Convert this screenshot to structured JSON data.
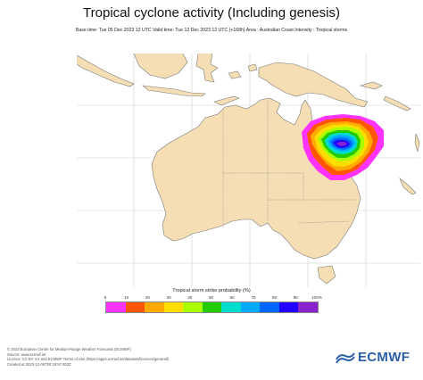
{
  "header": {
    "title": "Tropical cyclone activity (Including genesis)",
    "subtitle": "Base time: Tue 05 Dec 2023 12 UTC Valid time: Tue 12 Dec 2023 12 UTC (+168h) Area : Australian Coast Intensity : Tropical storms"
  },
  "legend": {
    "title": "Tropical storm strike probability (%)",
    "ticks": [
      "5",
      "10",
      "20",
      "30",
      "40",
      "50",
      "60",
      "70",
      "80",
      "90",
      "100%"
    ],
    "colors": [
      "#ff33ff",
      "#ff5500",
      "#ffaa00",
      "#ffdd00",
      "#aaff00",
      "#22cc00",
      "#00ddcc",
      "#00aaff",
      "#0066ff",
      "#2200ff",
      "#8822cc"
    ]
  },
  "colors": {
    "land": "#f5deb3",
    "sea": "#ffffff",
    "coast": "#777777",
    "grid": "#cccccc"
  },
  "footer": {
    "lines": [
      "© 2023 European Centre for Medium-Range Weather Forecasts (ECMWF)",
      "Source: www.ecmwf.int",
      "Licence: CC BY 4.0 and ECMWF Terms of Use (https://apps.ecmwf.int/datasets/licences/general/)",
      "Created at 2023-12-06T00:19:57.802Z"
    ]
  },
  "logo": {
    "text": "ECMWF",
    "icon": "ecmwf-logo-icon"
  }
}
